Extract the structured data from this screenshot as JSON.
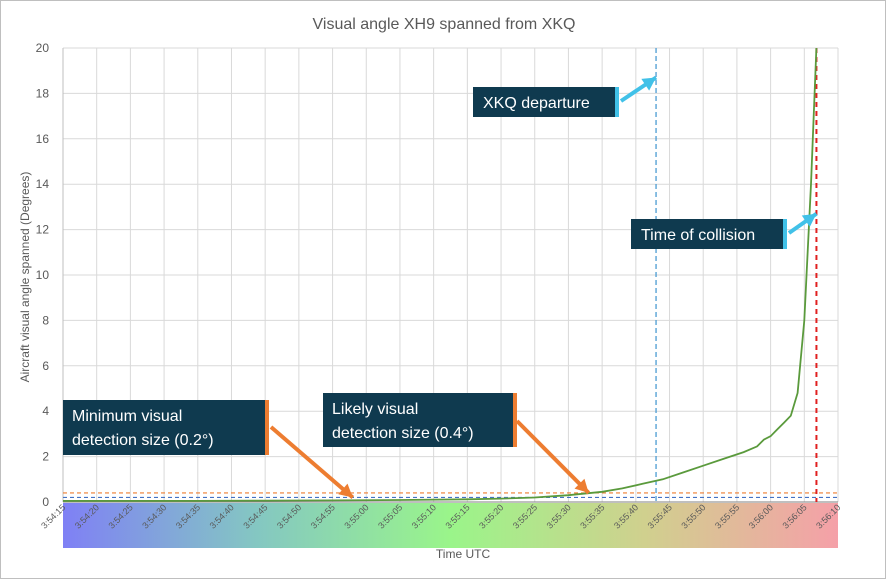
{
  "chart_data": {
    "type": "line",
    "title": "Visual angle XH9 spanned from XKQ",
    "xlabel": "Time UTC",
    "ylabel": "Aircraft visual angle spanned (Degrees)",
    "x_start": "3:54:15",
    "x_end": "3:56:10",
    "x_tick_step_seconds": 5,
    "x_tick_labels": [
      "3:54:15",
      "3:54:20",
      "3:54:25",
      "3:54:30",
      "3:54:35",
      "3:54:40",
      "3:54:45",
      "3:54:50",
      "3:54:55",
      "3:55:00",
      "3:55:05",
      "3:55:10",
      "3:55:15",
      "3:55:20",
      "3:55:25",
      "3:55:30",
      "3:55:35",
      "3:55:40",
      "3:55:45",
      "3:55:50",
      "3:55:55",
      "3:56:00",
      "3:56:05",
      "3:56:10"
    ],
    "ylim": [
      0,
      20
    ],
    "y_ticks": [
      0,
      2,
      4,
      6,
      8,
      10,
      12,
      14,
      16,
      18,
      20
    ],
    "grid": "vertical and horizontal",
    "series": [
      {
        "color": "#5a9a3c",
        "points": [
          [
            "3:54:15",
            0.05
          ],
          [
            "3:54:25",
            0.05
          ],
          [
            "3:54:35",
            0.05
          ],
          [
            "3:54:45",
            0.06
          ],
          [
            "3:54:55",
            0.07
          ],
          [
            "3:55:05",
            0.09
          ],
          [
            "3:55:15",
            0.12
          ],
          [
            "3:55:20",
            0.15
          ],
          [
            "3:55:25",
            0.2
          ],
          [
            "3:55:30",
            0.3
          ],
          [
            "3:55:35",
            0.45
          ],
          [
            "3:55:38",
            0.6
          ],
          [
            "3:55:41",
            0.8
          ],
          [
            "3:55:44",
            1.0
          ],
          [
            "3:55:47",
            1.3
          ],
          [
            "3:55:50",
            1.6
          ],
          [
            "3:55:53",
            1.9
          ],
          [
            "3:55:56",
            2.2
          ],
          [
            "3:55:58",
            2.45
          ],
          [
            "3:55:59",
            2.75
          ],
          [
            "3:56:00",
            2.9
          ],
          [
            "3:56:01",
            3.2
          ],
          [
            "3:56:02",
            3.5
          ],
          [
            "3:56:03",
            3.8
          ],
          [
            "3:56:04",
            4.8
          ],
          [
            "3:56:05",
            8.0
          ],
          [
            "3:56:06",
            14.0
          ],
          [
            "3:56:06.8",
            20.0
          ]
        ]
      }
    ],
    "reference_lines": {
      "horizontal": [
        {
          "y": 0.2,
          "color": "#4472c4"
        },
        {
          "y": 0.4,
          "color": "#ed7d31"
        }
      ],
      "vertical": [
        {
          "x": "3:55:43",
          "color": "#4b9cd3"
        },
        {
          "x": "3:56:06.8",
          "color": "#e02020"
        }
      ]
    },
    "callouts": [
      {
        "text": "XKQ departure",
        "arrow_to": [
          "3:55:43",
          18.7
        ],
        "arrow_color": "#41c1e8"
      },
      {
        "text": "Time of collision",
        "arrow_to": [
          "3:56:06.8",
          12.7
        ],
        "arrow_color": "#41c1e8"
      },
      {
        "lines": [
          "Minimum visual",
          "detection size (0.2°)"
        ],
        "arrow_to": [
          "3:54:58",
          0.2
        ],
        "arrow_color": "#ed7d31"
      },
      {
        "lines": [
          "Likely visual",
          "detection size (0.4°)"
        ],
        "arrow_to": [
          "3:55:33",
          0.4
        ],
        "arrow_color": "#ed7d31"
      }
    ],
    "x_band_gradient": [
      "#7f80f5",
      "#84c7c2",
      "#9af58a",
      "#d0d08e",
      "#f5a0a8"
    ],
    "callout_box_color": "#0f3a4f"
  }
}
